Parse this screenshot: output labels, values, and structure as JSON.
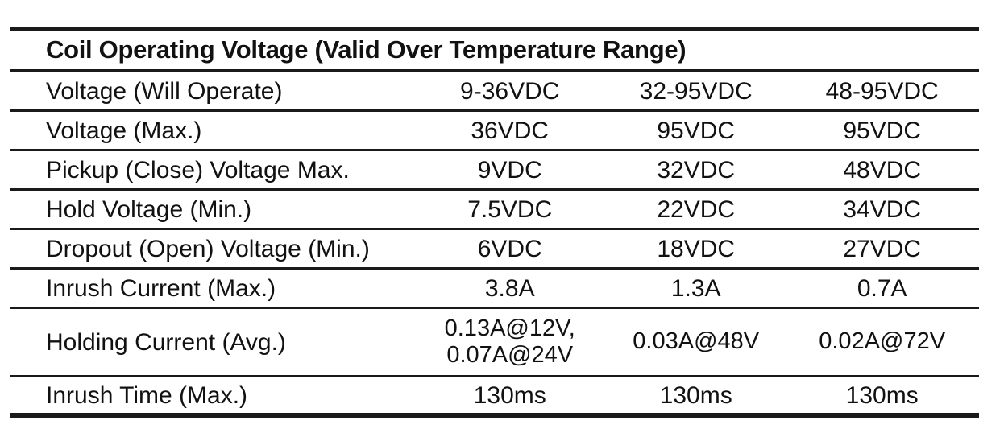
{
  "table": {
    "title": "Coil Operating Voltage (Valid Over Temperature Range)",
    "rows": [
      {
        "label": "Voltage (Will Operate)",
        "values": [
          "9-36VDC",
          "32-95VDC",
          "48-95VDC"
        ]
      },
      {
        "label": "Voltage (Max.)",
        "values": [
          "36VDC",
          "95VDC",
          "95VDC"
        ]
      },
      {
        "label": "Pickup (Close) Voltage Max.",
        "values": [
          "9VDC",
          "32VDC",
          "48VDC"
        ]
      },
      {
        "label": "Hold Voltage (Min.)",
        "values": [
          "7.5VDC",
          "22VDC",
          "34VDC"
        ]
      },
      {
        "label": "Dropout (Open) Voltage (Min.)",
        "values": [
          "6VDC",
          "18VDC",
          "27VDC"
        ]
      },
      {
        "label": "Inrush Current (Max.)",
        "values": [
          "3.8A",
          "1.3A",
          "0.7A"
        ]
      },
      {
        "label": "Holding Current (Avg.)",
        "values": [
          "0.13A@12V,\n0.07A@24V",
          "0.03A@48V",
          "0.02A@72V"
        ]
      },
      {
        "label": "Inrush Time (Max.)",
        "values": [
          "130ms",
          "130ms",
          "130ms"
        ]
      }
    ],
    "colors": {
      "text": "#111111",
      "rule": "#1a1a1a",
      "background": "#ffffff"
    }
  }
}
